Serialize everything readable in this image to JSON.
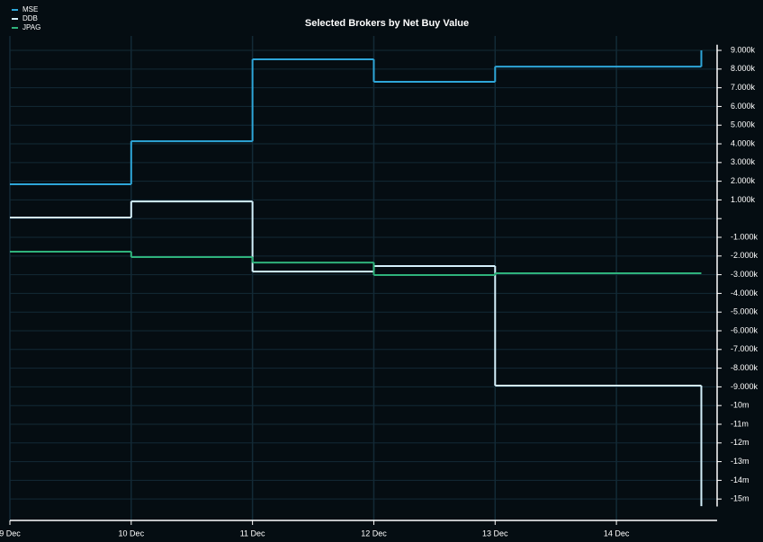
{
  "chart_data": {
    "type": "step",
    "title": "Selected Brokers by Net Buy Value",
    "x": [
      9,
      10,
      11,
      12,
      13,
      14.7
    ],
    "xlim": [
      9,
      14.83
    ],
    "xticks": [
      {
        "value": 9,
        "label": "9 Dec"
      },
      {
        "value": 10,
        "label": "10 Dec"
      },
      {
        "value": 11,
        "label": "11 Dec"
      },
      {
        "value": 12,
        "label": "12 Dec"
      },
      {
        "value": 13,
        "label": "13 Dec"
      },
      {
        "value": 14,
        "label": "14 Dec"
      }
    ],
    "ylim": [
      -15.4,
      9.3
    ],
    "yticks": [
      {
        "value": 9,
        "label": "9.000k"
      },
      {
        "value": 8,
        "label": "8.000k"
      },
      {
        "value": 7,
        "label": "7.000k"
      },
      {
        "value": 6,
        "label": "6.000k"
      },
      {
        "value": 5,
        "label": "5.000k"
      },
      {
        "value": 4,
        "label": "4.000k"
      },
      {
        "value": 3,
        "label": "3.000k"
      },
      {
        "value": 2,
        "label": "2.000k"
      },
      {
        "value": 1,
        "label": "1.000k"
      },
      {
        "value": 0,
        "label": null
      },
      {
        "value": -1,
        "label": "-1.000k"
      },
      {
        "value": -2,
        "label": "-2.000k"
      },
      {
        "value": -3,
        "label": "-3.000k"
      },
      {
        "value": -4,
        "label": "-4.000k"
      },
      {
        "value": -5,
        "label": "-5.000k"
      },
      {
        "value": -6,
        "label": "-6.000k"
      },
      {
        "value": -7,
        "label": "-7.000k"
      },
      {
        "value": -8,
        "label": "-8.000k"
      },
      {
        "value": -9,
        "label": "-9.000k"
      },
      {
        "value": -10,
        "label": "-10m"
      },
      {
        "value": -11,
        "label": "-11m"
      },
      {
        "value": -12,
        "label": "-12m"
      },
      {
        "value": -13,
        "label": "-13m"
      },
      {
        "value": -14,
        "label": "-14m"
      },
      {
        "value": -15,
        "label": "-15m"
      }
    ],
    "grid": true,
    "legend": "top-left",
    "series": [
      {
        "name": "MSE",
        "color": "#2ea6d8",
        "values": [
          1.84,
          4.14,
          8.52,
          7.32,
          8.13,
          9.0
        ]
      },
      {
        "name": "DDB",
        "color": "#d4f0fb",
        "values": [
          0.06,
          0.92,
          -2.83,
          -2.54,
          -8.93,
          -15.38
        ]
      },
      {
        "name": "JPAG",
        "color": "#2fb27b",
        "values": [
          -1.77,
          -2.06,
          -2.35,
          -3.02,
          -2.92,
          -2.92
        ]
      }
    ]
  }
}
